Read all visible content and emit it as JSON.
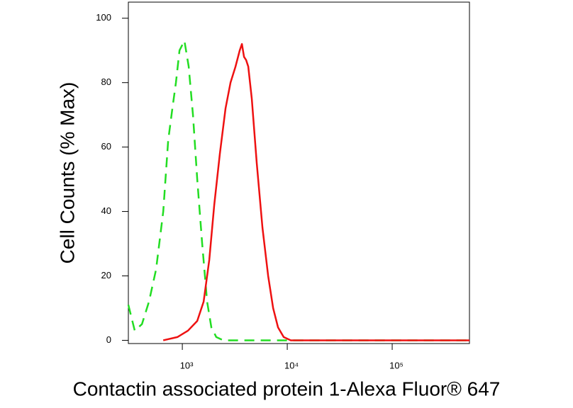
{
  "chart_data": {
    "type": "line",
    "xlabel": "Contactin associated protein 1-Alexa Fluor® 647",
    "ylabel": "Cell Counts (% Max)",
    "xscale": "log",
    "xlim": [
      306,
      545000
    ],
    "ylim": [
      -1,
      105
    ],
    "xticks": [
      {
        "value": 1000,
        "label": "10³"
      },
      {
        "value": 10000,
        "label": "10⁴"
      },
      {
        "value": 100000,
        "label": "10⁵"
      }
    ],
    "yticks": [
      0,
      20,
      40,
      60,
      80,
      100
    ],
    "grid": false,
    "series": [
      {
        "color": "#22dd22",
        "dash": true,
        "x": [
          306,
          352,
          412,
          481,
          562,
          658,
          733,
          804,
          869,
          940,
          1047,
          1150,
          1263,
          1387,
          1546,
          1723,
          1891,
          2108,
          2464,
          20140,
          545000
        ],
        "values": [
          11,
          3,
          5,
          12,
          22,
          40,
          62,
          72,
          80,
          90,
          93,
          85,
          70,
          50,
          30,
          12,
          4,
          1,
          0,
          0,
          0
        ]
      },
      {
        "color": "#ee1111",
        "dash": false,
        "x": [
          658,
          897,
          1132,
          1387,
          1596,
          1807,
          2014,
          2280,
          2581,
          2879,
          3213,
          3524,
          3697,
          3874,
          4057,
          4249,
          4592,
          5120,
          5802,
          6576,
          7334,
          8171,
          9250,
          10810,
          545000
        ],
        "values": [
          0,
          1,
          3,
          6,
          12,
          25,
          42,
          58,
          72,
          80,
          85,
          90,
          92,
          88,
          87,
          85,
          75,
          55,
          35,
          20,
          10,
          4,
          1,
          0,
          0
        ]
      }
    ]
  }
}
